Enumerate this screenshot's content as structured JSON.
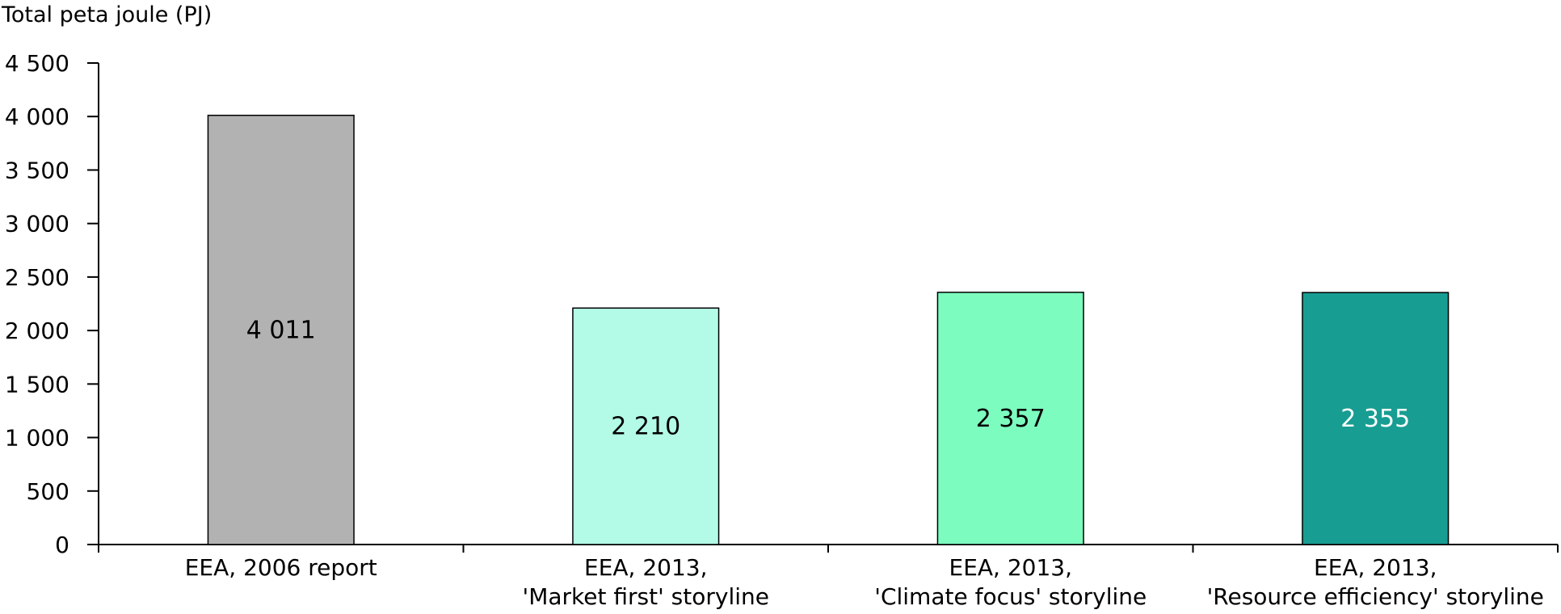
{
  "chart_data": {
    "type": "bar",
    "ylabel": "Total peta joule (PJ)",
    "ylim": [
      0,
      4500
    ],
    "yticks": [
      0,
      500,
      1000,
      1500,
      2000,
      2500,
      3000,
      3500,
      4000,
      4500
    ],
    "ytick_labels": [
      "0",
      "500",
      "1 000",
      "1 500",
      "2 000",
      "2 500",
      "3 000",
      "3 500",
      "4 000",
      "4 500"
    ],
    "grid": false,
    "legend": "none",
    "categories": [
      {
        "lines": [
          "EEA, 2006 report"
        ]
      },
      {
        "lines": [
          "EEA, 2013,",
          "'Market first' storyline"
        ]
      },
      {
        "lines": [
          "EEA, 2013,",
          "'Climate focus' storyline"
        ]
      },
      {
        "lines": [
          "EEA, 2013,",
          "'Resource efficiency' storyline"
        ]
      }
    ],
    "values": [
      4011,
      2210,
      2357,
      2355
    ],
    "value_labels": [
      "4 011",
      "2 210",
      "2 357",
      "2 355"
    ],
    "bar_colors": [
      "#b2b2b2",
      "#b3fbe6",
      "#7dfcbf",
      "#189d93"
    ],
    "value_label_colors": [
      "#000000",
      "#000000",
      "#000000",
      "#ffffff"
    ]
  }
}
